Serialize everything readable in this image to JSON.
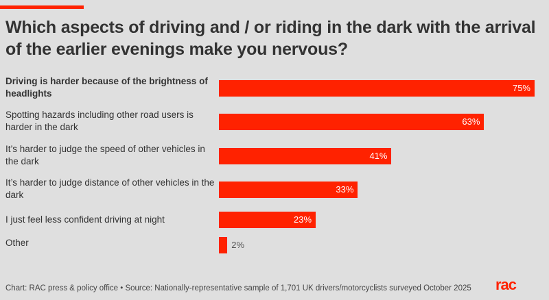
{
  "chart_data": {
    "type": "bar",
    "orientation": "horizontal",
    "title": "Which aspects of driving and / or riding in the dark with the arrival of the earlier evenings make you nervous?",
    "categories": [
      "Driving is harder because of the brightness of headlights",
      "Spotting hazards including other road users is harder in the dark",
      "It’s harder to judge the speed of other vehicles in the dark",
      "It’s harder to judge distance of other vehicles in the dark",
      "I just feel less confident driving at night",
      "Other"
    ],
    "values": [
      75,
      63,
      41,
      33,
      23,
      2
    ],
    "value_labels": [
      "75%",
      "63%",
      "41%",
      "33%",
      "23%",
      "2%"
    ],
    "xlim": [
      0,
      75
    ],
    "grid": false,
    "bar_color": "#ff2200"
  },
  "footer": "Chart: RAC press & policy office • Source: Nationally-representative sample of 1,701 UK drivers/motorcyclists surveyed October 2025",
  "logo": "RAC",
  "colors": {
    "accent": "#ff2200",
    "background": "#dfdfdf"
  }
}
